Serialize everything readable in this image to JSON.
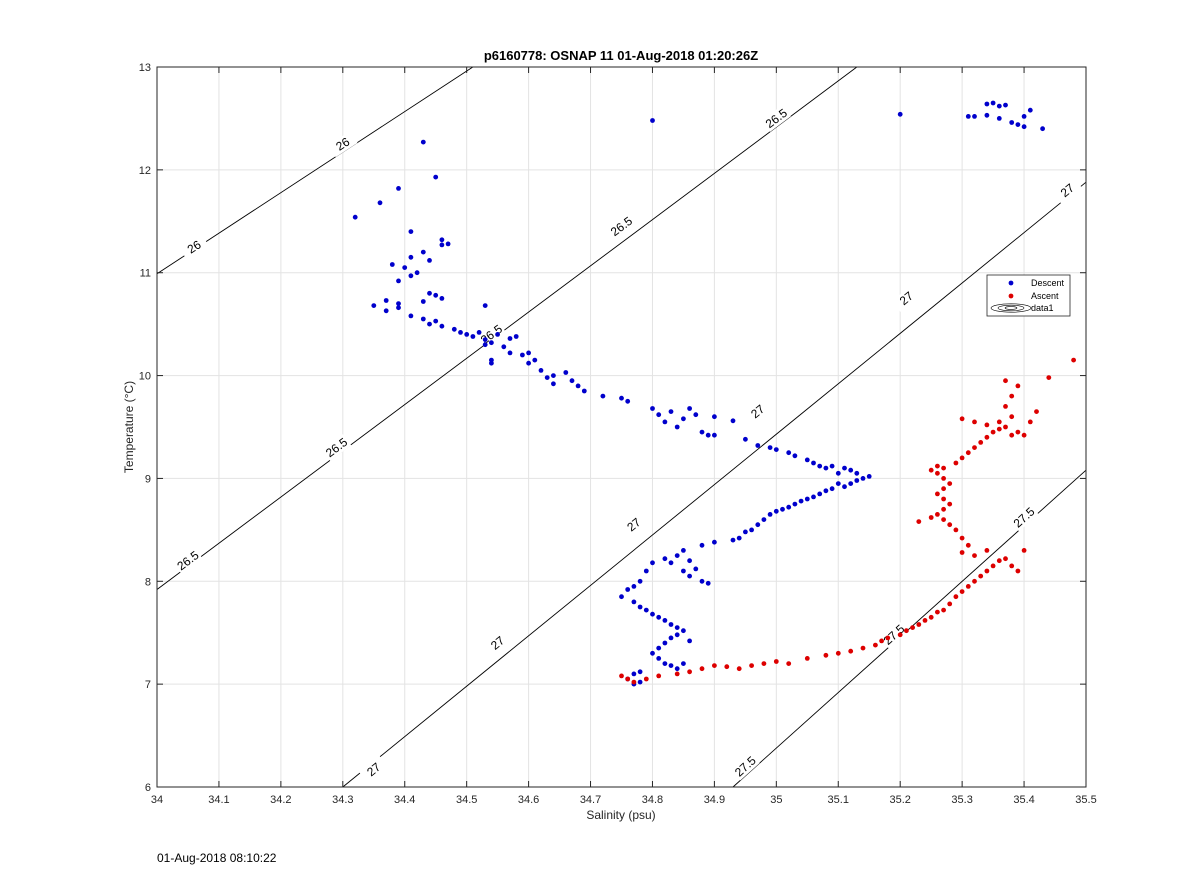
{
  "timestamp": "01-Aug-2018 08:10:22",
  "chart_data": {
    "type": "scatter",
    "title": "p6160778: OSNAP 11 01-Aug-2018 01:20:26Z",
    "xlabel": "Salinity (psu)",
    "ylabel": "Temperature (°C)",
    "xlim": [
      34,
      35.5
    ],
    "ylim": [
      6,
      13
    ],
    "xticks": [
      "34",
      "34.1",
      "34.2",
      "34.3",
      "34.4",
      "34.5",
      "34.6",
      "34.7",
      "34.8",
      "34.9",
      "35",
      "35.1",
      "35.2",
      "35.3",
      "35.4",
      "35.5"
    ],
    "yticks": [
      "6",
      "7",
      "8",
      "9",
      "10",
      "11",
      "12",
      "13"
    ],
    "grid": true,
    "legend": {
      "placement": "right",
      "entries": [
        {
          "name": "Descent",
          "color": "#0000cc"
        },
        {
          "name": "Ascent",
          "color": "#dd0000"
        },
        {
          "name": "data1",
          "color": "#000000"
        }
      ]
    },
    "isopycnals": [
      {
        "label": "26",
        "line": [
          [
            34.0,
            10.99
          ],
          [
            34.51,
            13.0
          ]
        ],
        "label_at": [
          [
            34.3,
            12.25
          ],
          [
            34.06,
            11.25
          ]
        ]
      },
      {
        "label": "26.5",
        "line": [
          [
            34.0,
            7.92
          ],
          [
            35.13,
            13.0
          ]
        ],
        "label_at": [
          [
            34.29,
            9.3
          ],
          [
            34.54,
            10.4
          ],
          [
            34.75,
            11.45
          ],
          [
            35.0,
            12.5
          ],
          [
            34.05,
            8.2
          ]
        ]
      },
      {
        "label": "27",
        "line": [
          [
            34.3,
            6.0
          ],
          [
            35.5,
            11.88
          ]
        ],
        "label_at": [
          [
            34.35,
            6.17
          ],
          [
            34.55,
            7.4
          ],
          [
            34.77,
            8.55
          ],
          [
            34.97,
            9.65
          ],
          [
            35.21,
            10.75
          ],
          [
            35.47,
            11.8
          ]
        ]
      },
      {
        "label": "27.5",
        "line": [
          [
            34.93,
            6.0
          ],
          [
            35.5,
            9.08
          ]
        ],
        "label_at": [
          [
            34.95,
            6.2
          ],
          [
            35.19,
            7.48
          ],
          [
            35.4,
            8.62
          ]
        ]
      }
    ],
    "series": [
      {
        "name": "Descent",
        "color": "#0000cc",
        "points": [
          [
            34.32,
            11.54
          ],
          [
            34.36,
            11.68
          ],
          [
            34.39,
            11.82
          ],
          [
            34.43,
            12.27
          ],
          [
            34.45,
            11.93
          ],
          [
            34.41,
            11.4
          ],
          [
            34.43,
            11.2
          ],
          [
            34.41,
            11.15
          ],
          [
            34.38,
            11.08
          ],
          [
            34.4,
            11.05
          ],
          [
            34.42,
            11.0
          ],
          [
            34.39,
            10.92
          ],
          [
            34.41,
            10.97
          ],
          [
            34.46,
            11.27
          ],
          [
            34.46,
            11.32
          ],
          [
            34.47,
            11.28
          ],
          [
            34.44,
            11.12
          ],
          [
            34.35,
            10.68
          ],
          [
            34.37,
            10.73
          ],
          [
            34.37,
            10.63
          ],
          [
            34.39,
            10.66
          ],
          [
            34.39,
            10.7
          ],
          [
            34.41,
            10.58
          ],
          [
            34.43,
            10.72
          ],
          [
            34.44,
            10.8
          ],
          [
            34.45,
            10.78
          ],
          [
            34.46,
            10.75
          ],
          [
            34.43,
            10.55
          ],
          [
            34.44,
            10.5
          ],
          [
            34.45,
            10.53
          ],
          [
            34.46,
            10.48
          ],
          [
            34.48,
            10.45
          ],
          [
            34.49,
            10.42
          ],
          [
            34.5,
            10.4
          ],
          [
            34.51,
            10.38
          ],
          [
            34.52,
            10.42
          ],
          [
            34.53,
            10.35
          ],
          [
            34.53,
            10.68
          ],
          [
            34.53,
            10.3
          ],
          [
            34.54,
            10.32
          ],
          [
            34.55,
            10.4
          ],
          [
            34.56,
            10.28
          ],
          [
            34.57,
            10.36
          ],
          [
            34.58,
            10.38
          ],
          [
            34.54,
            10.15
          ],
          [
            34.54,
            10.12
          ],
          [
            34.57,
            10.22
          ],
          [
            34.59,
            10.2
          ],
          [
            34.6,
            10.22
          ],
          [
            34.61,
            10.15
          ],
          [
            34.6,
            10.12
          ],
          [
            34.62,
            10.05
          ],
          [
            34.63,
            9.98
          ],
          [
            34.64,
            10.0
          ],
          [
            34.64,
            9.92
          ],
          [
            34.66,
            10.03
          ],
          [
            34.67,
            9.95
          ],
          [
            34.68,
            9.9
          ],
          [
            34.69,
            9.85
          ],
          [
            34.72,
            9.8
          ],
          [
            34.75,
            9.78
          ],
          [
            34.76,
            9.75
          ],
          [
            34.8,
            9.68
          ],
          [
            34.81,
            9.62
          ],
          [
            34.82,
            9.55
          ],
          [
            34.83,
            9.65
          ],
          [
            34.84,
            9.5
          ],
          [
            34.85,
            9.58
          ],
          [
            34.86,
            9.68
          ],
          [
            34.87,
            9.62
          ],
          [
            34.88,
            9.45
          ],
          [
            34.89,
            9.42
          ],
          [
            34.9,
            9.6
          ],
          [
            34.93,
            9.56
          ],
          [
            34.9,
            9.42
          ],
          [
            34.95,
            9.38
          ],
          [
            34.97,
            9.32
          ],
          [
            34.99,
            9.3
          ],
          [
            35.0,
            9.28
          ],
          [
            35.02,
            9.25
          ],
          [
            35.03,
            9.22
          ],
          [
            35.05,
            9.18
          ],
          [
            35.06,
            9.15
          ],
          [
            35.07,
            9.12
          ],
          [
            35.08,
            9.1
          ],
          [
            35.09,
            9.12
          ],
          [
            35.1,
            9.05
          ],
          [
            35.11,
            9.1
          ],
          [
            35.12,
            9.08
          ],
          [
            35.13,
            9.05
          ],
          [
            35.14,
            9.0
          ],
          [
            35.15,
            9.02
          ],
          [
            35.13,
            8.98
          ],
          [
            35.12,
            8.95
          ],
          [
            35.11,
            8.92
          ],
          [
            35.1,
            8.95
          ],
          [
            35.09,
            8.9
          ],
          [
            35.08,
            8.88
          ],
          [
            35.07,
            8.85
          ],
          [
            35.06,
            8.82
          ],
          [
            35.05,
            8.8
          ],
          [
            35.04,
            8.78
          ],
          [
            35.03,
            8.75
          ],
          [
            35.02,
            8.72
          ],
          [
            35.01,
            8.7
          ],
          [
            35.0,
            8.68
          ],
          [
            34.99,
            8.65
          ],
          [
            34.98,
            8.6
          ],
          [
            34.97,
            8.55
          ],
          [
            34.96,
            8.5
          ],
          [
            34.95,
            8.48
          ],
          [
            34.94,
            8.42
          ],
          [
            34.93,
            8.4
          ],
          [
            34.9,
            8.38
          ],
          [
            34.88,
            8.35
          ],
          [
            34.85,
            8.3
          ],
          [
            34.84,
            8.25
          ],
          [
            34.82,
            8.22
          ],
          [
            34.83,
            8.18
          ],
          [
            34.86,
            8.2
          ],
          [
            34.87,
            8.12
          ],
          [
            34.85,
            8.1
          ],
          [
            34.86,
            8.05
          ],
          [
            34.88,
            8.0
          ],
          [
            34.89,
            7.98
          ],
          [
            34.8,
            8.18
          ],
          [
            34.79,
            8.1
          ],
          [
            34.78,
            8.0
          ],
          [
            34.77,
            7.95
          ],
          [
            34.76,
            7.92
          ],
          [
            34.75,
            7.85
          ],
          [
            34.77,
            7.8
          ],
          [
            34.78,
            7.75
          ],
          [
            34.79,
            7.72
          ],
          [
            34.8,
            7.68
          ],
          [
            34.81,
            7.65
          ],
          [
            34.82,
            7.62
          ],
          [
            34.83,
            7.58
          ],
          [
            34.84,
            7.55
          ],
          [
            34.85,
            7.52
          ],
          [
            34.84,
            7.48
          ],
          [
            34.83,
            7.45
          ],
          [
            34.82,
            7.4
          ],
          [
            34.81,
            7.35
          ],
          [
            34.8,
            7.3
          ],
          [
            34.81,
            7.25
          ],
          [
            34.82,
            7.2
          ],
          [
            34.83,
            7.18
          ],
          [
            34.84,
            7.15
          ],
          [
            34.85,
            7.2
          ],
          [
            34.86,
            7.42
          ],
          [
            34.78,
            7.12
          ],
          [
            34.77,
            7.1
          ],
          [
            34.76,
            7.05
          ],
          [
            34.77,
            7.0
          ],
          [
            34.78,
            7.02
          ]
        ]
      },
      {
        "name": "Ascent",
        "color": "#dd0000",
        "points": [
          [
            34.75,
            7.08
          ],
          [
            34.76,
            7.05
          ],
          [
            34.77,
            7.02
          ],
          [
            34.79,
            7.05
          ],
          [
            34.81,
            7.08
          ],
          [
            34.84,
            7.1
          ],
          [
            34.86,
            7.12
          ],
          [
            34.88,
            7.15
          ],
          [
            34.9,
            7.18
          ],
          [
            34.92,
            7.17
          ],
          [
            34.94,
            7.15
          ],
          [
            34.96,
            7.18
          ],
          [
            34.98,
            7.2
          ],
          [
            35.0,
            7.22
          ],
          [
            35.02,
            7.2
          ],
          [
            35.05,
            7.25
          ],
          [
            35.08,
            7.28
          ],
          [
            35.1,
            7.3
          ],
          [
            35.12,
            7.32
          ],
          [
            35.14,
            7.35
          ],
          [
            35.16,
            7.38
          ],
          [
            35.17,
            7.42
          ],
          [
            35.18,
            7.45
          ],
          [
            35.2,
            7.48
          ],
          [
            35.21,
            7.52
          ],
          [
            35.22,
            7.55
          ],
          [
            35.23,
            7.58
          ],
          [
            35.24,
            7.62
          ],
          [
            35.25,
            7.65
          ],
          [
            35.26,
            7.7
          ],
          [
            35.27,
            7.72
          ],
          [
            35.28,
            7.78
          ],
          [
            35.29,
            7.85
          ],
          [
            35.3,
            7.9
          ],
          [
            35.31,
            7.95
          ],
          [
            35.32,
            8.0
          ],
          [
            35.33,
            8.05
          ],
          [
            35.34,
            8.1
          ],
          [
            35.35,
            8.15
          ],
          [
            35.36,
            8.2
          ],
          [
            35.37,
            8.22
          ],
          [
            35.38,
            8.15
          ],
          [
            35.39,
            8.1
          ],
          [
            35.4,
            8.3
          ],
          [
            35.34,
            8.3
          ],
          [
            35.32,
            8.25
          ],
          [
            35.3,
            8.28
          ],
          [
            35.31,
            8.35
          ],
          [
            35.3,
            8.42
          ],
          [
            35.29,
            8.5
          ],
          [
            35.28,
            8.55
          ],
          [
            35.27,
            8.6
          ],
          [
            35.25,
            8.62
          ],
          [
            35.23,
            8.58
          ],
          [
            35.26,
            8.65
          ],
          [
            35.27,
            8.7
          ],
          [
            35.28,
            8.75
          ],
          [
            35.27,
            8.8
          ],
          [
            35.26,
            8.85
          ],
          [
            35.27,
            8.9
          ],
          [
            35.28,
            8.95
          ],
          [
            35.27,
            9.0
          ],
          [
            35.26,
            9.05
          ],
          [
            35.25,
            9.08
          ],
          [
            35.26,
            9.12
          ],
          [
            35.27,
            9.1
          ],
          [
            35.29,
            9.15
          ],
          [
            35.3,
            9.2
          ],
          [
            35.31,
            9.25
          ],
          [
            35.32,
            9.3
          ],
          [
            35.33,
            9.35
          ],
          [
            35.34,
            9.4
          ],
          [
            35.35,
            9.45
          ],
          [
            35.36,
            9.48
          ],
          [
            35.37,
            9.5
          ],
          [
            35.38,
            9.42
          ],
          [
            35.39,
            9.45
          ],
          [
            35.4,
            9.42
          ],
          [
            35.41,
            9.55
          ],
          [
            35.38,
            9.6
          ],
          [
            35.37,
            9.7
          ],
          [
            35.38,
            9.8
          ],
          [
            35.39,
            9.9
          ],
          [
            35.37,
            9.95
          ],
          [
            35.42,
            9.65
          ],
          [
            35.44,
            9.98
          ],
          [
            35.48,
            10.15
          ],
          [
            35.3,
            9.58
          ],
          [
            35.32,
            9.55
          ],
          [
            35.34,
            9.52
          ],
          [
            35.36,
            9.55
          ]
        ]
      },
      {
        "name": "Descent",
        "color": "#0000cc",
        "points": [
          [
            34.8,
            12.48
          ],
          [
            35.2,
            12.54
          ],
          [
            35.31,
            12.52
          ],
          [
            35.32,
            12.52
          ],
          [
            35.34,
            12.64
          ],
          [
            35.35,
            12.65
          ],
          [
            35.36,
            12.62
          ],
          [
            35.37,
            12.63
          ],
          [
            35.34,
            12.53
          ],
          [
            35.36,
            12.5
          ],
          [
            35.38,
            12.46
          ],
          [
            35.39,
            12.44
          ],
          [
            35.4,
            12.52
          ],
          [
            35.41,
            12.58
          ],
          [
            35.4,
            12.42
          ],
          [
            35.43,
            12.4
          ]
        ]
      }
    ]
  }
}
